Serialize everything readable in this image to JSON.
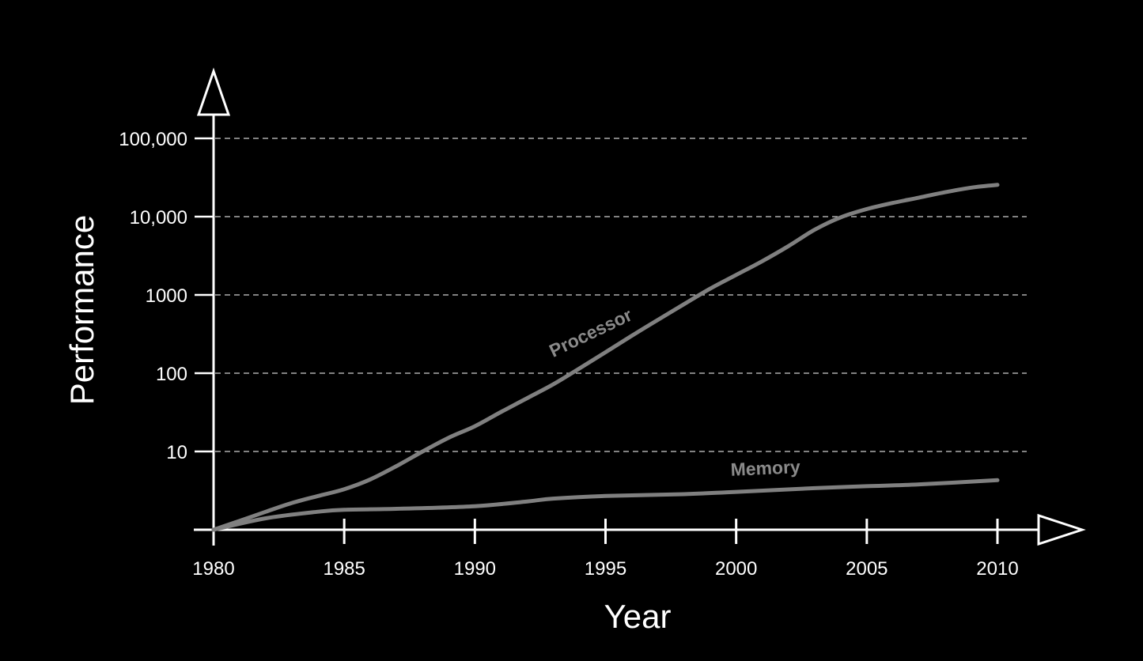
{
  "chart_data": {
    "type": "line",
    "xlabel": "Year",
    "ylabel": "Performance",
    "x_ticks": [
      "1980",
      "1985",
      "1990",
      "1995",
      "2000",
      "2005",
      "2010"
    ],
    "y_ticks": [
      "10",
      "100",
      "1000",
      "10,000",
      "100,000"
    ],
    "y_scale": "log",
    "ylim": [
      1,
      100000
    ],
    "xlim": [
      1980,
      2010
    ],
    "grid": "horizontal dashed",
    "series": [
      {
        "name": "Processor",
        "color": "#808080",
        "points": [
          [
            1980,
            1
          ],
          [
            1981,
            1.3
          ],
          [
            1982,
            1.7
          ],
          [
            1983,
            2.2
          ],
          [
            1984,
            2.7
          ],
          [
            1985,
            3.3
          ],
          [
            1986,
            4.4
          ],
          [
            1987,
            6.5
          ],
          [
            1988,
            10
          ],
          [
            1989,
            15
          ],
          [
            1990,
            21
          ],
          [
            1991,
            32
          ],
          [
            1992,
            48
          ],
          [
            1993,
            72
          ],
          [
            1994,
            115
          ],
          [
            1995,
            185
          ],
          [
            1996,
            300
          ],
          [
            1997,
            480
          ],
          [
            1998,
            760
          ],
          [
            1999,
            1200
          ],
          [
            2000,
            1800
          ],
          [
            2001,
            2700
          ],
          [
            2002,
            4200
          ],
          [
            2003,
            6800
          ],
          [
            2004,
            9800
          ],
          [
            2005,
            12500
          ],
          [
            2006,
            15000
          ],
          [
            2007,
            17500
          ],
          [
            2008,
            20500
          ],
          [
            2009,
            23500
          ],
          [
            2010,
            25500
          ]
        ]
      },
      {
        "name": "Memory",
        "color": "#808080",
        "points": [
          [
            1980,
            1
          ],
          [
            1982,
            1.4
          ],
          [
            1984,
            1.7
          ],
          [
            1985,
            1.8
          ],
          [
            1987,
            1.85
          ],
          [
            1990,
            2.0
          ],
          [
            1992,
            2.3
          ],
          [
            1993,
            2.5
          ],
          [
            1995,
            2.7
          ],
          [
            1998,
            2.85
          ],
          [
            2000,
            3.05
          ],
          [
            2003,
            3.4
          ],
          [
            2005,
            3.6
          ],
          [
            2007,
            3.8
          ],
          [
            2010,
            4.3
          ]
        ]
      }
    ]
  }
}
